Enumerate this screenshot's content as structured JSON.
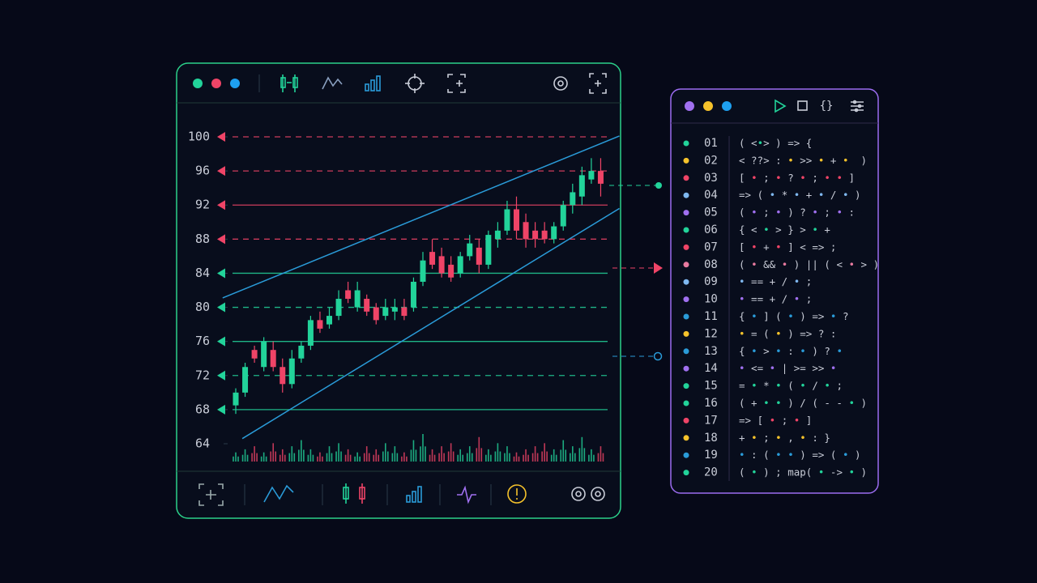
{
  "chart_data": {
    "type": "candlestick",
    "ylim": [
      62,
      101
    ],
    "yticks": [
      64,
      68,
      72,
      76,
      80,
      84,
      88,
      92,
      96,
      100
    ],
    "up_color": "#22d39a",
    "down_color": "#ef4467",
    "candles": [
      {
        "open": 68.5,
        "high": 70.5,
        "low": 67.5,
        "close": 70
      },
      {
        "open": 70,
        "high": 73.5,
        "low": 69.5,
        "close": 73
      },
      {
        "open": 75,
        "high": 75.5,
        "low": 73.5,
        "close": 74
      },
      {
        "open": 73,
        "high": 76.5,
        "low": 72.5,
        "close": 76
      },
      {
        "open": 75,
        "high": 76,
        "low": 72.5,
        "close": 73
      },
      {
        "open": 73,
        "high": 74,
        "low": 70,
        "close": 71
      },
      {
        "open": 71,
        "high": 75,
        "low": 70.5,
        "close": 74
      },
      {
        "open": 74,
        "high": 76,
        "low": 73.5,
        "close": 75.5
      },
      {
        "open": 75.5,
        "high": 79,
        "low": 75,
        "close": 78.5
      },
      {
        "open": 78.5,
        "high": 79.5,
        "low": 77,
        "close": 77.5
      },
      {
        "open": 78,
        "high": 80,
        "low": 77.5,
        "close": 79
      },
      {
        "open": 79,
        "high": 82,
        "low": 78.5,
        "close": 81
      },
      {
        "open": 82,
        "high": 83,
        "low": 80.5,
        "close": 81
      },
      {
        "open": 80,
        "high": 83,
        "low": 79.5,
        "close": 82
      },
      {
        "open": 81,
        "high": 81.5,
        "low": 79,
        "close": 79.5
      },
      {
        "open": 80,
        "high": 80.5,
        "low": 78,
        "close": 78.5
      },
      {
        "open": 79,
        "high": 81,
        "low": 78.5,
        "close": 80
      },
      {
        "open": 79.5,
        "high": 81,
        "low": 78.5,
        "close": 80
      },
      {
        "open": 80,
        "high": 81,
        "low": 78.5,
        "close": 79
      },
      {
        "open": 80,
        "high": 83.5,
        "low": 79.5,
        "close": 83
      },
      {
        "open": 83,
        "high": 86.5,
        "low": 82.5,
        "close": 85.5
      },
      {
        "open": 86.5,
        "high": 88,
        "low": 84.5,
        "close": 85
      },
      {
        "open": 86,
        "high": 87,
        "low": 83.5,
        "close": 84
      },
      {
        "open": 85,
        "high": 86,
        "low": 83,
        "close": 83.5
      },
      {
        "open": 84,
        "high": 86.5,
        "low": 83.5,
        "close": 86
      },
      {
        "open": 86,
        "high": 88.5,
        "low": 85.5,
        "close": 87.5
      },
      {
        "open": 87,
        "high": 88,
        "low": 84,
        "close": 85
      },
      {
        "open": 85,
        "high": 89,
        "low": 84.5,
        "close": 88.5
      },
      {
        "open": 88,
        "high": 90,
        "low": 87,
        "close": 89
      },
      {
        "open": 89,
        "high": 92.5,
        "low": 88.5,
        "close": 91.5
      },
      {
        "open": 91.5,
        "high": 93,
        "low": 88,
        "close": 89
      },
      {
        "open": 90,
        "high": 91,
        "low": 87,
        "close": 88
      },
      {
        "open": 89,
        "high": 90,
        "low": 87,
        "close": 88
      },
      {
        "open": 89,
        "high": 90,
        "low": 87.5,
        "close": 88
      },
      {
        "open": 88,
        "high": 90,
        "low": 87.5,
        "close": 89.5
      },
      {
        "open": 89.5,
        "high": 92.5,
        "low": 89,
        "close": 92
      },
      {
        "open": 92,
        "high": 94.5,
        "low": 91,
        "close": 93.5
      },
      {
        "open": 93,
        "high": 96.5,
        "low": 92,
        "close": 95.5
      },
      {
        "open": 95,
        "high": 97.5,
        "low": 94.5,
        "close": 96
      },
      {
        "open": 96,
        "high": 97.5,
        "low": 93,
        "close": 94.5
      }
    ],
    "volumes": [
      3,
      4,
      5,
      3,
      6,
      4,
      5,
      7,
      4,
      3,
      5,
      6,
      4,
      3,
      5,
      4,
      6,
      5,
      3,
      7,
      9,
      4,
      5,
      6,
      4,
      5,
      8,
      4,
      6,
      5,
      3,
      4,
      5,
      6,
      4,
      7,
      5,
      8,
      4,
      5
    ],
    "levels": [
      {
        "value": 100,
        "color": "#ef4467",
        "dashed": true
      },
      {
        "value": 96,
        "color": "#ef4467",
        "dashed": true
      },
      {
        "value": 92,
        "color": "#ef4467",
        "dashed": false
      },
      {
        "value": 88,
        "color": "#ef4467",
        "dashed": true
      },
      {
        "value": 84,
        "color": "#22d39a",
        "dashed": false
      },
      {
        "value": 80,
        "color": "#22d39a",
        "dashed": true
      },
      {
        "value": 76,
        "color": "#22d39a",
        "dashed": false
      },
      {
        "value": 72,
        "color": "#22d39a",
        "dashed": true
      },
      {
        "value": 68,
        "color": "#22d39a",
        "dashed": false
      }
    ],
    "trendlines": [
      {
        "color": "#2a9bd8",
        "from": [
          -1.4,
          81.1
        ],
        "to": [
          41,
          100.1
        ]
      },
      {
        "color": "#2a9bd8",
        "from": [
          0.7,
          64.6
        ],
        "to": [
          41,
          91.6
        ]
      }
    ]
  },
  "code_panel": {
    "lines": [
      {
        "num": "01",
        "dot": "#22d39a",
        "code": "( <•> ) => {"
      },
      {
        "num": "02",
        "dot": "#f5c22b",
        "code": "< ??> : • >> • + •  )"
      },
      {
        "num": "03",
        "dot": "#ef4467",
        "code": "[ • ; • ? • ; • • ]"
      },
      {
        "num": "04",
        "dot": "#7fb8f0",
        "code": "=> ( • * • + • / • )"
      },
      {
        "num": "05",
        "dot": "#a070f0",
        "code": "( • ; • ) ? • ; • :"
      },
      {
        "num": "06",
        "dot": "#22d39a",
        "code": "{ < • > } > • +"
      },
      {
        "num": "07",
        "dot": "#ef4467",
        "code": "[ • + • ] < => ;"
      },
      {
        "num": "08",
        "dot": "#e87aa0",
        "code": "( • && • ) || ( < • > )"
      },
      {
        "num": "09",
        "dot": "#7fb8f0",
        "code": "• == + / • ;"
      },
      {
        "num": "10",
        "dot": "#a070f0",
        "code": "• == + / • ;"
      },
      {
        "num": "11",
        "dot": "#2a9bd8",
        "code": "{ • ] ( • ) => • ?"
      },
      {
        "num": "12",
        "dot": "#f5c22b",
        "code": "• = ( • ) => ? :"
      },
      {
        "num": "13",
        "dot": "#2a9bd8",
        "code": "{ • > • : • ) ? •"
      },
      {
        "num": "14",
        "dot": "#a070f0",
        "code": "• <= • | >= >> •"
      },
      {
        "num": "15",
        "dot": "#22d39a",
        "code": "= • * • ( • / • ;"
      },
      {
        "num": "16",
        "dot": "#22d39a",
        "code": "( + • • ) / ( - - • )"
      },
      {
        "num": "17",
        "dot": "#ef4467",
        "code": "=> [ • ; • ]"
      },
      {
        "num": "18",
        "dot": "#f5c22b",
        "code": "+ • ; • , • : }"
      },
      {
        "num": "19",
        "dot": "#2a9bd8",
        "code": "• : ( • • ) => ( • )"
      },
      {
        "num": "20",
        "dot": "#22d39a",
        "code": "( • ) ; map( • -> • )"
      }
    ]
  }
}
